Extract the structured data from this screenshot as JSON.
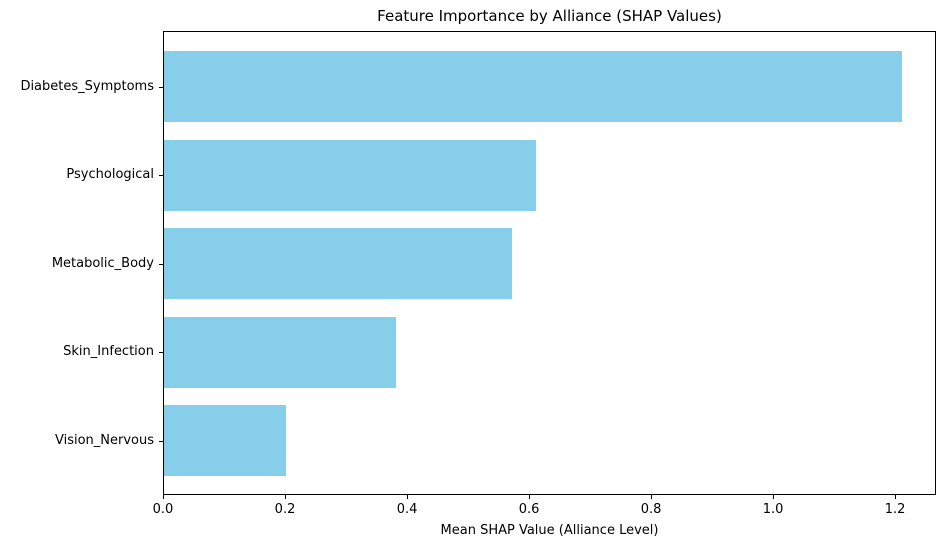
{
  "chart_data": {
    "type": "bar",
    "orientation": "horizontal",
    "title": "Feature Importance by Alliance (SHAP Values)",
    "xlabel": "Mean SHAP Value (Alliance Level)",
    "ylabel": "",
    "categories": [
      "Diabetes_Symptoms",
      "Psychological",
      "Metabolic_Body",
      "Skin_Infection",
      "Vision_Nervous"
    ],
    "values": [
      1.21,
      0.61,
      0.57,
      0.38,
      0.2
    ],
    "xlim": [
      0,
      1.267
    ],
    "xticks": [
      0.0,
      0.2,
      0.4,
      0.6,
      0.8,
      1.0,
      1.2
    ],
    "xtick_labels": [
      "0.0",
      "0.2",
      "0.4",
      "0.6",
      "0.8",
      "1.0",
      "1.2"
    ],
    "bar_color": "#87CEEB",
    "spine_color": "#000000",
    "text_color": "#000000",
    "background_color": "#ffffff",
    "grid": false,
    "legend": null
  }
}
